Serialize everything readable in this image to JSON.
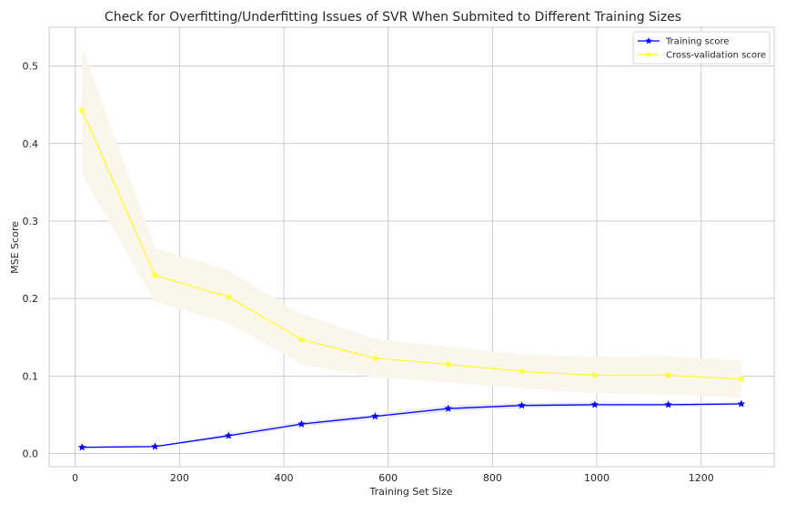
{
  "chart_data": {
    "type": "line",
    "title": "Check for Overfitting/Underfitting Issues of SVR When Submited to Different Training Sizes",
    "xlabel": "Training Set Size",
    "ylabel": "MSE Score",
    "xlim": [
      -50,
      1340
    ],
    "ylim": [
      -0.017,
      0.55
    ],
    "xticks": [
      0,
      200,
      400,
      600,
      800,
      1000,
      1200
    ],
    "yticks": [
      0.0,
      0.1,
      0.2,
      0.3,
      0.4,
      0.5
    ],
    "ytick_labels": [
      "0.0",
      "0.1",
      "0.2",
      "0.3",
      "0.4",
      "0.5"
    ],
    "grid": true,
    "legend_position": "top-right",
    "x": [
      13,
      153,
      294,
      434,
      575,
      715,
      856,
      996,
      1137,
      1277
    ],
    "series": [
      {
        "name": "Training score",
        "color": "#0000ff",
        "band_color": "#e8e8f8",
        "marker": "star",
        "values": [
          0.008,
          0.009,
          0.023,
          0.038,
          0.048,
          0.058,
          0.062,
          0.063,
          0.063,
          0.064
        ],
        "lower": [
          0.007,
          0.008,
          0.02,
          0.035,
          0.045,
          0.054,
          0.059,
          0.06,
          0.061,
          0.062
        ],
        "upper": [
          0.009,
          0.01,
          0.026,
          0.041,
          0.051,
          0.062,
          0.065,
          0.066,
          0.065,
          0.066
        ]
      },
      {
        "name": "Cross-validation score",
        "color": "#ffff33",
        "band_color": "#faf6ec",
        "marker": "star",
        "values": [
          0.443,
          0.23,
          0.202,
          0.147,
          0.123,
          0.115,
          0.106,
          0.101,
          0.101,
          0.096
        ],
        "lower": [
          0.36,
          0.195,
          0.168,
          0.115,
          0.098,
          0.092,
          0.084,
          0.078,
          0.076,
          0.072
        ],
        "upper": [
          0.525,
          0.265,
          0.236,
          0.18,
          0.148,
          0.138,
          0.128,
          0.125,
          0.126,
          0.12
        ]
      }
    ]
  }
}
